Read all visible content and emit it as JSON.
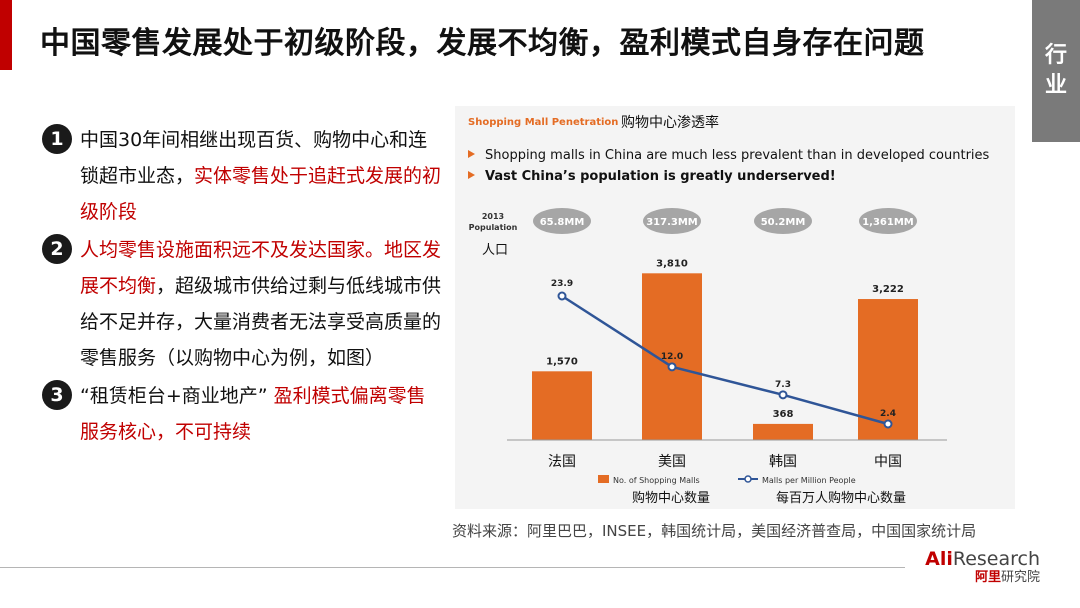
{
  "slide": {
    "title": "中国零售发展处于初级阶段，发展不均衡，盈利模式自身存在问题",
    "side_tab": "行业"
  },
  "points": [
    {
      "num": "1",
      "parts": [
        {
          "text": "中国30年间相继出现百货、购物中心和连锁超市业态，",
          "red": false
        },
        {
          "text": "实体零售处于追赶式发展的初级阶段",
          "red": true
        }
      ]
    },
    {
      "num": "2",
      "parts": [
        {
          "text": "人均零售设施面积远不及发达国家。地区发展不均衡",
          "red": true
        },
        {
          "text": "，超级城市供给过剩与低线城市供给不足并存，大量消费者无法享受高质量的零售服务（以购物中心为例，如图）",
          "red": false
        }
      ]
    },
    {
      "num": "3",
      "parts": [
        {
          "text": "“租赁柜台+商业地产”",
          "red": false
        },
        {
          "text": " 盈利模式偏离零售服务核心，不可持续",
          "red": true
        }
      ]
    }
  ],
  "chart_header": {
    "title_en": "Shopping Mall Penetration",
    "title_cn": "购物中心渗透率",
    "bullets": [
      "Shopping malls in China are much less prevalent than in developed countries",
      "Vast China’s population is greatly underserved!"
    ],
    "population_label_year": "2013",
    "population_label_en": "Population",
    "population_label_cn": "人口"
  },
  "chart_data": {
    "type": "bar",
    "categories": [
      "法国",
      "美国",
      "韩国",
      "中国"
    ],
    "population": [
      "65.8MM",
      "317.3MM",
      "50.2MM",
      "1,361MM"
    ],
    "series": [
      {
        "name": "No. of Shopping Malls",
        "name_cn": "购物中心数量",
        "type": "bar",
        "values": [
          1570,
          3810,
          368,
          3222
        ],
        "labels": [
          "1,570",
          "3,810",
          "368",
          "3,222"
        ],
        "color": "#e46c24"
      },
      {
        "name": "Malls per Million People",
        "name_cn": "每百万人购物中心数量",
        "type": "line",
        "values": [
          23.9,
          12.0,
          7.3,
          2.4
        ],
        "labels": [
          "23.9",
          "12.0",
          "7.3",
          "2.4"
        ],
        "color": "#2f5597"
      }
    ],
    "legend_position": "bottom",
    "grid": false
  },
  "source": "资料来源：阿里巴巴，INSEE，韩国统计局，美国经济普查局，中国国家统计局",
  "logo": {
    "main_ali": "Ali",
    "main_rest": "Research",
    "sub_ali": "阿里",
    "sub_rest": "研究院"
  },
  "colors": {
    "accent": "#c00000",
    "bar": "#e46c24",
    "line": "#2f5597",
    "bubble": "#a6a6a6"
  }
}
